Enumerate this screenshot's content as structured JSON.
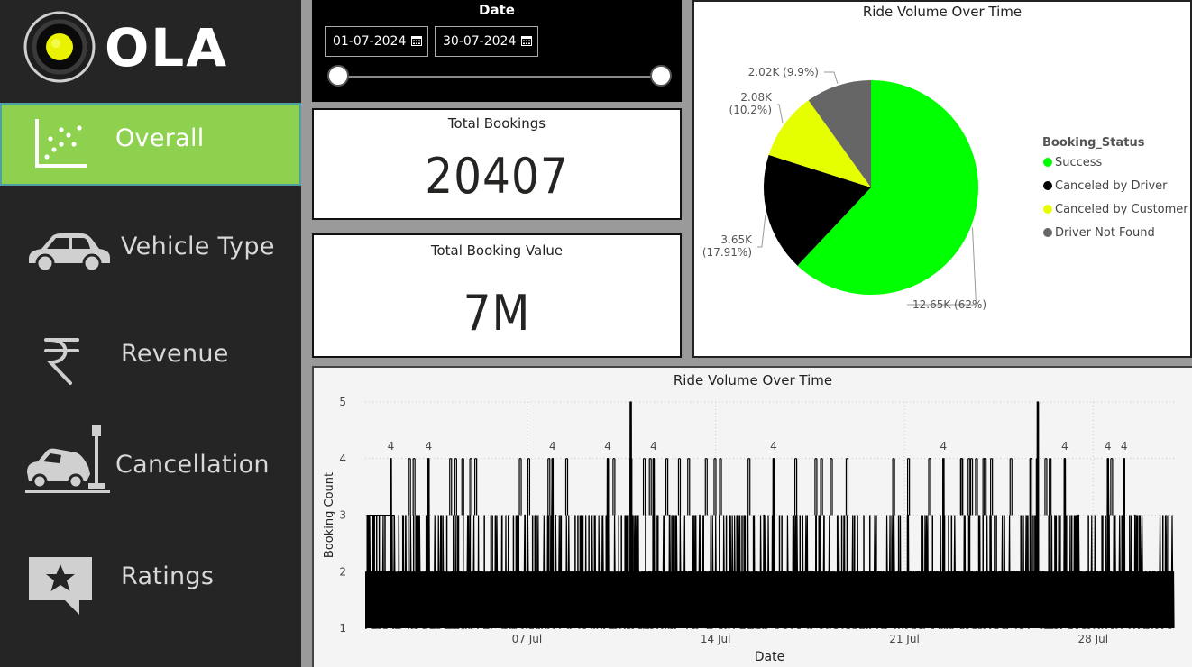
{
  "brand": {
    "name": "OLA"
  },
  "nav": {
    "items": [
      {
        "label": "Overall",
        "icon": "scatter-chart-icon",
        "active": true
      },
      {
        "label": "Vehicle Type",
        "icon": "car-icon",
        "active": false
      },
      {
        "label": "Revenue",
        "icon": "rupee-icon",
        "active": false
      },
      {
        "label": "Cancellation",
        "icon": "car-crash-icon",
        "active": false
      },
      {
        "label": "Ratings",
        "icon": "star-speech-bubble-icon",
        "active": false
      }
    ]
  },
  "date_filter": {
    "title": "Date",
    "start": "01-07-2024",
    "end": "30-07-2024"
  },
  "kpis": {
    "total_bookings": {
      "title": "Total Bookings",
      "value": "20407"
    },
    "total_booking_value": {
      "title": "Total Booking Value",
      "value": "7M"
    }
  },
  "chart_data": [
    {
      "type": "pie",
      "title": "Ride Volume Over Time",
      "legend_title": "Booking_Status",
      "legend_position": "right",
      "slices": [
        {
          "name": "Success",
          "value": 12650,
          "label": "12.65K (62%)",
          "color": "#00ff00"
        },
        {
          "name": "Canceled by Driver",
          "value": 3650,
          "label": "3.65K (17.91%)",
          "color": "#000000"
        },
        {
          "name": "Canceled by Customer",
          "value": 2080,
          "label": "2.08K (10.2%)",
          "color": "#e6ff00"
        },
        {
          "name": "Driver Not Found",
          "value": 2020,
          "label": "2.02K (9.9%)",
          "color": "#666666"
        }
      ]
    },
    {
      "type": "line",
      "title": "Ride Volume Over Time",
      "xlabel": "Date",
      "ylabel": "Booking Count",
      "ylim": [
        1,
        5
      ],
      "yticks": [
        1,
        2,
        3,
        4,
        5
      ],
      "xlim_days": [
        1,
        31
      ],
      "xticks": [
        {
          "day": 7,
          "label": "07 Jul"
        },
        {
          "day": 14,
          "label": "14 Jul"
        },
        {
          "day": 21,
          "label": "21 Jul"
        },
        {
          "day": 28,
          "label": "28 Jul"
        }
      ],
      "series_color": "#000000",
      "peaks": [
        {
          "day": 1.95,
          "value": 4,
          "label": "4"
        },
        {
          "day": 3.35,
          "value": 4,
          "label": "4"
        },
        {
          "day": 7.95,
          "value": 4,
          "label": "4"
        },
        {
          "day": 10.0,
          "value": 4,
          "label": "4"
        },
        {
          "day": 10.85,
          "value": 5,
          "label": ""
        },
        {
          "day": 11.7,
          "value": 4,
          "label": "4"
        },
        {
          "day": 16.15,
          "value": 4,
          "label": "4"
        },
        {
          "day": 22.45,
          "value": 4,
          "label": "4"
        },
        {
          "day": 25.95,
          "value": 5,
          "label": ""
        },
        {
          "day": 26.95,
          "value": 4,
          "label": "4"
        },
        {
          "day": 28.55,
          "value": 4,
          "label": "4"
        },
        {
          "day": 29.15,
          "value": 4,
          "label": "4"
        }
      ]
    }
  ]
}
